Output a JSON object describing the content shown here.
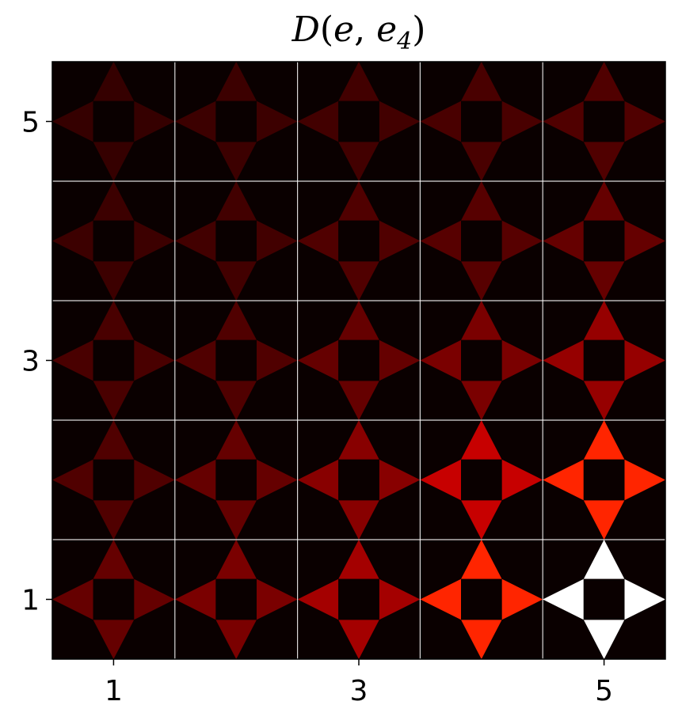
{
  "chart_data": {
    "type": "heatmap",
    "title": {
      "name": "D",
      "open": "(",
      "arg1": "e",
      "sep": ", ",
      "arg2": "e",
      "sub": "4",
      "close": ")"
    },
    "xlabel": "",
    "ylabel": "",
    "x_ticks": [
      "1",
      "3",
      "5"
    ],
    "y_ticks": [
      "1",
      "3",
      "5"
    ],
    "grid": true,
    "colormap": "hot",
    "value_range": [
      0,
      1
    ],
    "columns": [
      1,
      2,
      3,
      4,
      5
    ],
    "rows": [
      1,
      2,
      3,
      4,
      5
    ],
    "cells": [
      {
        "row": 1,
        "col": 1,
        "up": 0.13,
        "down": 0.13,
        "left": 0.13,
        "right": 0.13
      },
      {
        "row": 1,
        "col": 2,
        "up": 0.16,
        "down": 0.16,
        "left": 0.16,
        "right": 0.16
      },
      {
        "row": 1,
        "col": 3,
        "up": 0.22,
        "down": 0.22,
        "left": 0.22,
        "right": 0.22
      },
      {
        "row": 1,
        "col": 4,
        "up": 0.42,
        "down": 0.42,
        "left": 0.42,
        "right": 0.42
      },
      {
        "row": 1,
        "col": 5,
        "up": 1.0,
        "down": 1.0,
        "left": 1.0,
        "right": 1.0
      },
      {
        "row": 2,
        "col": 1,
        "up": 0.1,
        "down": 0.1,
        "left": 0.1,
        "right": 0.1
      },
      {
        "row": 2,
        "col": 2,
        "up": 0.13,
        "down": 0.13,
        "left": 0.13,
        "right": 0.13
      },
      {
        "row": 2,
        "col": 3,
        "up": 0.18,
        "down": 0.18,
        "left": 0.18,
        "right": 0.18
      },
      {
        "row": 2,
        "col": 4,
        "up": 0.27,
        "down": 0.27,
        "left": 0.27,
        "right": 0.27
      },
      {
        "row": 2,
        "col": 5,
        "up": 0.42,
        "down": 0.42,
        "left": 0.42,
        "right": 0.42
      },
      {
        "row": 3,
        "col": 1,
        "up": 0.09,
        "down": 0.09,
        "left": 0.09,
        "right": 0.09
      },
      {
        "row": 3,
        "col": 2,
        "up": 0.1,
        "down": 0.1,
        "left": 0.1,
        "right": 0.1
      },
      {
        "row": 3,
        "col": 3,
        "up": 0.13,
        "down": 0.13,
        "left": 0.13,
        "right": 0.13
      },
      {
        "row": 3,
        "col": 4,
        "up": 0.16,
        "down": 0.16,
        "left": 0.16,
        "right": 0.16
      },
      {
        "row": 3,
        "col": 5,
        "up": 0.2,
        "down": 0.2,
        "left": 0.2,
        "right": 0.2
      },
      {
        "row": 4,
        "col": 1,
        "up": 0.07,
        "down": 0.07,
        "left": 0.07,
        "right": 0.07
      },
      {
        "row": 4,
        "col": 2,
        "up": 0.08,
        "down": 0.08,
        "left": 0.08,
        "right": 0.08
      },
      {
        "row": 4,
        "col": 3,
        "up": 0.1,
        "down": 0.1,
        "left": 0.1,
        "right": 0.1
      },
      {
        "row": 4,
        "col": 4,
        "up": 0.11,
        "down": 0.11,
        "left": 0.11,
        "right": 0.11
      },
      {
        "row": 4,
        "col": 5,
        "up": 0.13,
        "down": 0.13,
        "left": 0.13,
        "right": 0.13
      },
      {
        "row": 5,
        "col": 1,
        "up": 0.06,
        "down": 0.06,
        "left": 0.06,
        "right": 0.06
      },
      {
        "row": 5,
        "col": 2,
        "up": 0.07,
        "down": 0.07,
        "left": 0.07,
        "right": 0.07
      },
      {
        "row": 5,
        "col": 3,
        "up": 0.08,
        "down": 0.08,
        "left": 0.08,
        "right": 0.08
      },
      {
        "row": 5,
        "col": 4,
        "up": 0.09,
        "down": 0.09,
        "left": 0.09,
        "right": 0.09
      },
      {
        "row": 5,
        "col": 5,
        "up": 0.1,
        "down": 0.1,
        "left": 0.1,
        "right": 0.1
      }
    ]
  }
}
